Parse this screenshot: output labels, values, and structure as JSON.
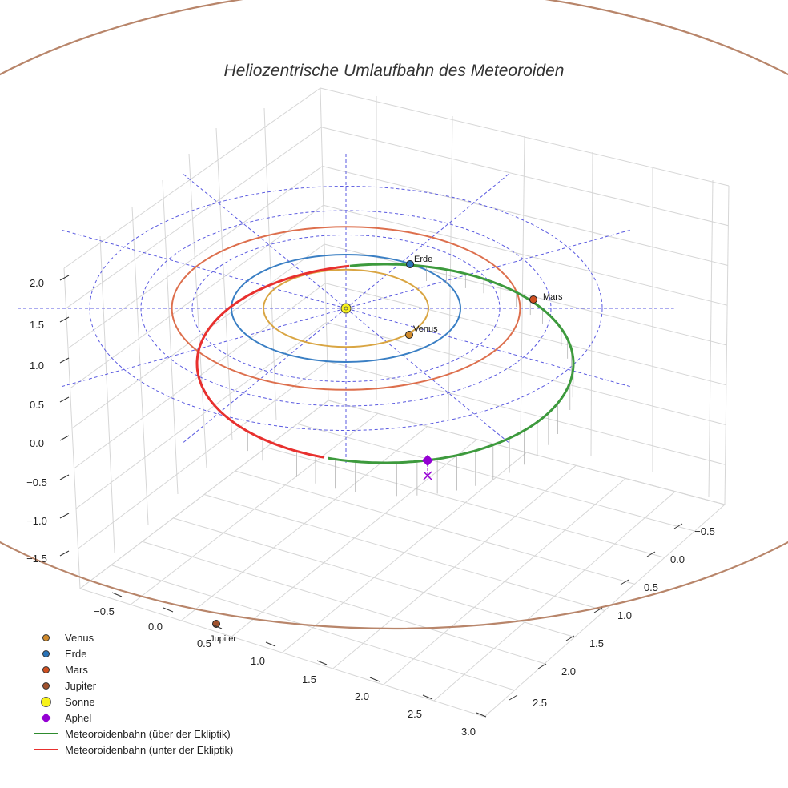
{
  "chart_data": {
    "type": "line",
    "projection": "3d",
    "title": "Heliozentrische Umlaufbahn des Meteoroiden",
    "xlabel": "",
    "ylabel": "",
    "zlabel": "",
    "x_ticks": [
      "−0.5",
      "0.0",
      "0.5",
      "1.0",
      "1.5",
      "2.0",
      "2.5",
      "3.0"
    ],
    "y_ticks": [
      "−0.5",
      "0.0",
      "0.5",
      "1.0",
      "1.5",
      "2.0",
      "2.5"
    ],
    "z_ticks": [
      "2.0",
      "1.5",
      "1.0",
      "0.5",
      "0.0",
      "−0.5",
      "−1.0",
      "−1.5"
    ],
    "xlim": [
      -0.7,
      3.1
    ],
    "ylim": [
      -0.7,
      2.7
    ],
    "zlim": [
      -1.7,
      2.2
    ],
    "grid": true,
    "legend_position": "bottom-left",
    "orbits": [
      {
        "name": "Venus",
        "radius_au": 0.72,
        "color": "#d9a542"
      },
      {
        "name": "Erde",
        "radius_au": 1.0,
        "color": "#3a7fc4"
      },
      {
        "name": "Mars",
        "radius_au": 1.52,
        "color": "#dd6f4d"
      },
      {
        "name": "Jupiter",
        "radius_au": 5.2,
        "color": "#b8856a"
      }
    ],
    "bodies": [
      {
        "name": "Venus",
        "label": "Venus",
        "color": "#d08a2b"
      },
      {
        "name": "Erde",
        "label": "Erde",
        "color": "#2a74b8"
      },
      {
        "name": "Mars",
        "label": "Mars",
        "color": "#cf4f20"
      },
      {
        "name": "Jupiter",
        "label": "Jupiter",
        "color": "#a0522d"
      },
      {
        "name": "Sonne",
        "label": "",
        "color": "#f7f21a"
      }
    ],
    "meteoroid_orbit": {
      "semi_major_axis_au": 1.75,
      "eccentricity": 0.43,
      "perihelion_au": 1.0,
      "aphelion_au": 2.5,
      "segments": [
        {
          "name": "Meteoroidenbahn (über der Ekliptik)",
          "color": "#3d9a3d"
        },
        {
          "name": "Meteoroidenbahn (unter der Ekliptik)",
          "color": "#e8302e"
        }
      ]
    },
    "ecliptic_grid_radii_au": [
      1.5,
      2.0,
      2.5
    ],
    "ecliptic_spoke_count": 12,
    "legend": [
      {
        "label": "Venus",
        "type": "dot",
        "color": "#d08a2b"
      },
      {
        "label": "Erde",
        "type": "dot",
        "color": "#2a74b8"
      },
      {
        "label": "Mars",
        "type": "dot",
        "color": "#cf4f20"
      },
      {
        "label": "Jupiter",
        "type": "dot",
        "color": "#a0522d"
      },
      {
        "label": "Sonne",
        "type": "bigdot",
        "color": "#f7f21a"
      },
      {
        "label": "Aphel",
        "type": "diamond",
        "color": "#9400d3"
      },
      {
        "label": "Meteoroidenbahn (über der Ekliptik)",
        "type": "line",
        "color": "#2e8b2e"
      },
      {
        "label": "Meteoroidenbahn (unter der Ekliptik)",
        "type": "line",
        "color": "#e8302e"
      }
    ]
  }
}
